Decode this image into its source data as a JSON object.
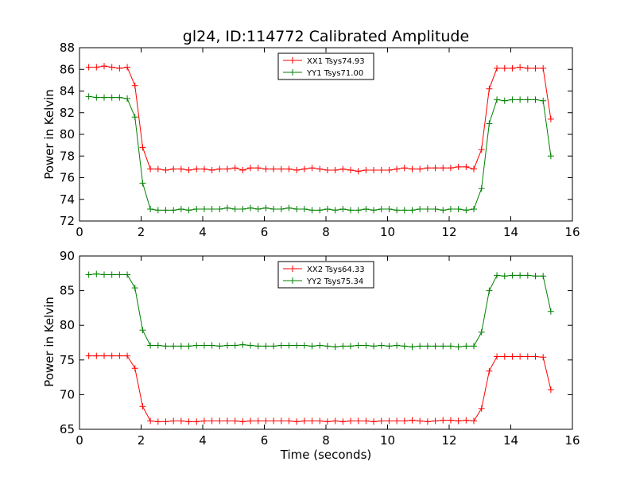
{
  "chart_data": [
    {
      "type": "line",
      "title": "gl24, ID:114772 Calibrated Amplitude",
      "xlabel": "",
      "ylabel": "Power in Kelvin",
      "xlim": [
        0,
        16
      ],
      "ylim": [
        72,
        88
      ],
      "xticks": [
        "0",
        "2",
        "4",
        "6",
        "8",
        "10",
        "12",
        "14",
        "16"
      ],
      "yticks": [
        "72",
        "74",
        "76",
        "78",
        "80",
        "82",
        "84",
        "86",
        "88"
      ],
      "grid": false,
      "legend_position": "top-center",
      "x": [
        0.3,
        0.55,
        0.8,
        1.05,
        1.3,
        1.55,
        1.8,
        2.05,
        2.3,
        2.55,
        2.8,
        3.05,
        3.3,
        3.55,
        3.8,
        4.05,
        4.3,
        4.55,
        4.8,
        5.05,
        5.3,
        5.55,
        5.8,
        6.05,
        6.3,
        6.55,
        6.8,
        7.05,
        7.3,
        7.55,
        7.8,
        8.05,
        8.3,
        8.55,
        8.8,
        9.05,
        9.3,
        9.55,
        9.8,
        10.05,
        10.3,
        10.55,
        10.8,
        11.05,
        11.3,
        11.55,
        11.8,
        12.05,
        12.3,
        12.55,
        12.8,
        13.05,
        13.3,
        13.55,
        13.8,
        14.05,
        14.3,
        14.55,
        14.8,
        15.05,
        15.3
      ],
      "series": [
        {
          "name": "XX1 Tsys74.93",
          "color": "#ff0000",
          "values": [
            86.2,
            86.2,
            86.3,
            86.2,
            86.1,
            86.2,
            84.5,
            78.8,
            76.8,
            76.8,
            76.7,
            76.8,
            76.8,
            76.7,
            76.8,
            76.8,
            76.7,
            76.8,
            76.8,
            76.9,
            76.7,
            76.9,
            76.9,
            76.8,
            76.8,
            76.8,
            76.8,
            76.7,
            76.8,
            76.9,
            76.8,
            76.7,
            76.7,
            76.8,
            76.7,
            76.6,
            76.7,
            76.7,
            76.7,
            76.7,
            76.8,
            76.9,
            76.8,
            76.8,
            76.9,
            76.9,
            76.9,
            76.9,
            77.0,
            77.0,
            76.8,
            78.6,
            84.2,
            86.1,
            86.1,
            86.1,
            86.2,
            86.1,
            86.1,
            86.1,
            81.4
          ]
        },
        {
          "name": "YY1 Tsys71.00",
          "color": "#008000",
          "values": [
            83.5,
            83.4,
            83.4,
            83.4,
            83.4,
            83.3,
            81.6,
            75.5,
            73.1,
            73.0,
            73.0,
            73.0,
            73.1,
            73.0,
            73.1,
            73.1,
            73.1,
            73.1,
            73.2,
            73.1,
            73.1,
            73.2,
            73.1,
            73.2,
            73.1,
            73.1,
            73.2,
            73.1,
            73.1,
            73.0,
            73.0,
            73.1,
            73.0,
            73.1,
            73.0,
            73.0,
            73.1,
            73.0,
            73.1,
            73.1,
            73.0,
            73.0,
            73.0,
            73.1,
            73.1,
            73.1,
            73.0,
            73.1,
            73.1,
            73.0,
            73.1,
            75.0,
            81.0,
            83.2,
            83.1,
            83.2,
            83.2,
            83.2,
            83.2,
            83.1,
            78.0
          ]
        }
      ]
    },
    {
      "type": "line",
      "title": "",
      "xlabel": "Time (seconds)",
      "ylabel": "Power in Kelvin",
      "xlim": [
        0,
        16
      ],
      "ylim": [
        65,
        90
      ],
      "xticks": [
        "0",
        "2",
        "4",
        "6",
        "8",
        "10",
        "12",
        "14",
        "16"
      ],
      "yticks": [
        "65",
        "70",
        "75",
        "80",
        "85",
        "90"
      ],
      "grid": false,
      "legend_position": "top-center",
      "x": [
        0.3,
        0.55,
        0.8,
        1.05,
        1.3,
        1.55,
        1.8,
        2.05,
        2.3,
        2.55,
        2.8,
        3.05,
        3.3,
        3.55,
        3.8,
        4.05,
        4.3,
        4.55,
        4.8,
        5.05,
        5.3,
        5.55,
        5.8,
        6.05,
        6.3,
        6.55,
        6.8,
        7.05,
        7.3,
        7.55,
        7.8,
        8.05,
        8.3,
        8.55,
        8.8,
        9.05,
        9.3,
        9.55,
        9.8,
        10.05,
        10.3,
        10.55,
        10.8,
        11.05,
        11.3,
        11.55,
        11.8,
        12.05,
        12.3,
        12.55,
        12.8,
        13.05,
        13.3,
        13.55,
        13.8,
        14.05,
        14.3,
        14.55,
        14.8,
        15.05,
        15.3
      ],
      "series": [
        {
          "name": "XX2 Tsys64.33",
          "color": "#ff0000",
          "values": [
            75.6,
            75.6,
            75.6,
            75.6,
            75.6,
            75.6,
            73.8,
            68.3,
            66.2,
            66.1,
            66.1,
            66.2,
            66.2,
            66.1,
            66.1,
            66.2,
            66.2,
            66.2,
            66.2,
            66.2,
            66.1,
            66.2,
            66.2,
            66.2,
            66.2,
            66.2,
            66.2,
            66.1,
            66.2,
            66.2,
            66.2,
            66.1,
            66.2,
            66.1,
            66.2,
            66.2,
            66.2,
            66.1,
            66.2,
            66.2,
            66.2,
            66.2,
            66.3,
            66.2,
            66.1,
            66.2,
            66.3,
            66.3,
            66.2,
            66.3,
            66.2,
            68.0,
            73.4,
            75.5,
            75.5,
            75.5,
            75.5,
            75.5,
            75.5,
            75.4,
            70.7
          ]
        },
        {
          "name": "YY2 Tsys75.34",
          "color": "#008000",
          "values": [
            87.3,
            87.4,
            87.3,
            87.3,
            87.3,
            87.3,
            85.4,
            79.3,
            77.1,
            77.1,
            77.0,
            77.0,
            77.0,
            77.0,
            77.1,
            77.1,
            77.1,
            77.0,
            77.1,
            77.1,
            77.2,
            77.1,
            77.0,
            77.0,
            77.0,
            77.1,
            77.1,
            77.1,
            77.1,
            77.0,
            77.1,
            77.0,
            76.9,
            77.0,
            77.0,
            77.1,
            77.1,
            77.0,
            77.1,
            77.0,
            77.1,
            77.0,
            76.9,
            77.0,
            77.0,
            77.0,
            77.0,
            77.0,
            76.9,
            77.0,
            77.0,
            79.0,
            85.0,
            87.2,
            87.1,
            87.2,
            87.2,
            87.2,
            87.1,
            87.1,
            82.0
          ]
        }
      ]
    }
  ]
}
